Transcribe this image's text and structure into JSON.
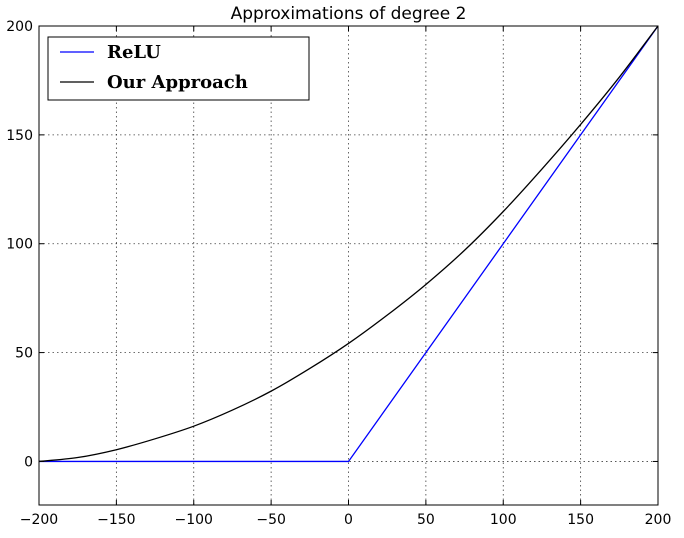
{
  "chart_data": {
    "type": "line",
    "title": "Approximations of degree 2",
    "xlabel": "",
    "ylabel": "",
    "xlim": [
      -200,
      200
    ],
    "ylim": [
      -20,
      200
    ],
    "xticks": [
      -200,
      -150,
      -100,
      -50,
      0,
      50,
      100,
      150,
      200
    ],
    "yticks": [
      0,
      50,
      100,
      150,
      200
    ],
    "xtick_labels": [
      "−200",
      "−150",
      "−100",
      "−50",
      "0",
      "50",
      "100",
      "150",
      "200"
    ],
    "ytick_labels": [
      "0",
      "50",
      "100",
      "150",
      "200"
    ],
    "grid": true,
    "legend_position": "top-left",
    "series": [
      {
        "name": "ReLU",
        "color": "#0000ff",
        "x": [
          -200,
          0,
          200
        ],
        "y": [
          0,
          0,
          200
        ]
      },
      {
        "name": "Our Approach",
        "color": "#000000",
        "x": [
          -200,
          -175,
          -150,
          -125,
          -100,
          -75,
          -50,
          -25,
          0,
          25,
          50,
          75,
          100,
          125,
          150,
          175,
          200
        ],
        "y": [
          0,
          1.8,
          5.4,
          10.4,
          16.2,
          23.6,
          32.3,
          42.7,
          54.2,
          67.2,
          81.3,
          97.0,
          114.8,
          134.3,
          154.8,
          176.5,
          200
        ]
      }
    ]
  }
}
